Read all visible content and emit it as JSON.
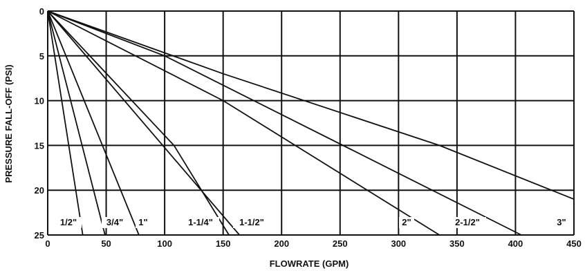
{
  "chart_data": {
    "type": "line",
    "title": "",
    "xlabel": "FLOWRATE (GPM)",
    "ylabel": "PRESSURE FALL-OFF (PSI)",
    "xlim": [
      0,
      450
    ],
    "ylim": [
      0,
      25
    ],
    "y_inverted": true,
    "grid": true,
    "x_ticks": [
      0,
      50,
      100,
      150,
      200,
      250,
      300,
      350,
      400,
      450
    ],
    "y_ticks": [
      0,
      5,
      10,
      15,
      20,
      25
    ],
    "series": [
      {
        "name": "1/2\"",
        "x": [
          0,
          30
        ],
        "y": [
          0,
          25
        ]
      },
      {
        "name": "3/4\"",
        "x": [
          0,
          49
        ],
        "y": [
          0,
          25
        ]
      },
      {
        "name": "1\"",
        "x": [
          0,
          78
        ],
        "y": [
          0,
          25
        ]
      },
      {
        "name": "1-1/4\"",
        "x": [
          0,
          108,
          155
        ],
        "y": [
          0,
          15,
          25
        ]
      },
      {
        "name": "1-1/2\"",
        "x": [
          0,
          164
        ],
        "y": [
          0,
          25
        ]
      },
      {
        "name": "2\"",
        "x": [
          0,
          150,
          335
        ],
        "y": [
          0,
          10,
          25
        ]
      },
      {
        "name": "2-1/2\"",
        "x": [
          0,
          100,
          405
        ],
        "y": [
          0,
          5,
          25
        ]
      },
      {
        "name": "3\"",
        "x": [
          0,
          150,
          335,
          450
        ],
        "y": [
          0,
          7,
          15,
          21
        ]
      }
    ]
  }
}
